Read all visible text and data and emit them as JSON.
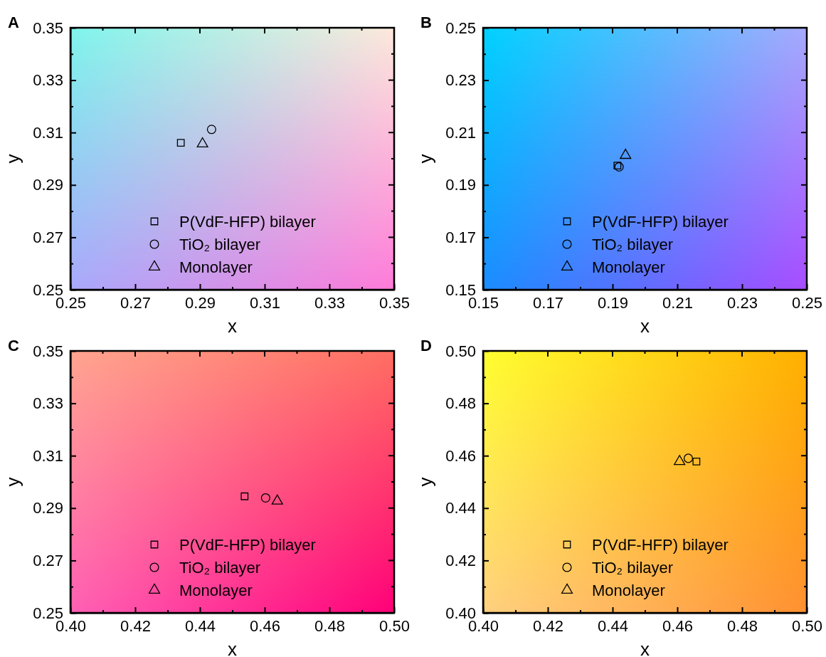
{
  "chart_data": [
    {
      "type": "scatter",
      "title": "A",
      "xlabel": "x",
      "ylabel": "y",
      "xlim": [
        0.25,
        0.35
      ],
      "ylim": [
        0.25,
        0.35
      ],
      "xticks": [
        0.25,
        {
          "value": 0.26,
          "label": null
        },
        0.27,
        {
          "value": 0.28,
          "label": null
        },
        0.29,
        {
          "value": 0.3,
          "label": null
        },
        0.31,
        {
          "value": 0.32,
          "label": null
        },
        0.33,
        {
          "value": 0.34,
          "label": null
        },
        0.35
      ],
      "yticks": [
        0.25,
        {
          "value": 0.26,
          "label": null
        },
        0.27,
        {
          "value": 0.28,
          "label": null
        },
        0.29,
        {
          "value": 0.3,
          "label": null
        },
        0.31,
        {
          "value": 0.32,
          "label": null
        },
        0.33,
        {
          "value": 0.34,
          "label": null
        },
        0.35
      ],
      "legend": "bottom",
      "grid": false,
      "series": [
        {
          "name": "P(VdF-HFP) bilayer",
          "marker": "square",
          "color": "#000000",
          "x": [
            0.2841
          ],
          "values": [
            0.3061
          ]
        },
        {
          "name": "TiO₂ bilayer",
          "marker": "circle",
          "color": "#000000",
          "x": [
            0.2936
          ],
          "values": [
            0.3112
          ]
        },
        {
          "name": "Monolayer",
          "marker": "triangle",
          "color": "#000000",
          "x": [
            0.2908
          ],
          "values": [
            0.3057
          ]
        }
      ]
    },
    {
      "type": "scatter",
      "title": "B",
      "xlabel": "x",
      "ylabel": "y",
      "xlim": [
        0.15,
        0.25
      ],
      "ylim": [
        0.15,
        0.25
      ],
      "xticks": [
        0.15,
        {
          "value": 0.16,
          "label": null
        },
        0.17,
        {
          "value": 0.18,
          "label": null
        },
        0.19,
        {
          "value": 0.2,
          "label": null
        },
        0.21,
        {
          "value": 0.22,
          "label": null
        },
        0.23,
        {
          "value": 0.24,
          "label": null
        },
        0.25
      ],
      "yticks": [
        0.15,
        {
          "value": 0.16,
          "label": null
        },
        0.17,
        {
          "value": 0.18,
          "label": null
        },
        0.19,
        {
          "value": 0.2,
          "label": null
        },
        0.21,
        {
          "value": 0.22,
          "label": null
        },
        0.23,
        {
          "value": 0.24,
          "label": null
        },
        0.25
      ],
      "legend": "bottom",
      "grid": false,
      "series": [
        {
          "name": "P(VdF-HFP) bilayer",
          "marker": "square",
          "color": "#000000",
          "x": [
            0.1915
          ],
          "values": [
            0.1974
          ]
        },
        {
          "name": "TiO₂ bilayer",
          "marker": "circle",
          "color": "#000000",
          "x": [
            0.192
          ],
          "values": [
            0.1969
          ]
        },
        {
          "name": "Monolayer",
          "marker": "triangle",
          "color": "#000000",
          "x": [
            0.194
          ],
          "values": [
            0.2013
          ]
        }
      ]
    },
    {
      "type": "scatter",
      "title": "C",
      "xlabel": "x",
      "ylabel": "y",
      "xlim": [
        0.4,
        0.5
      ],
      "ylim": [
        0.25,
        0.35
      ],
      "xticks": [
        {
          "value": 0.4,
          "label": "0.40"
        },
        {
          "value": 0.41,
          "label": null
        },
        0.42,
        {
          "value": 0.43,
          "label": null
        },
        0.44,
        {
          "value": 0.45,
          "label": null
        },
        0.46,
        {
          "value": 0.47,
          "label": null
        },
        0.48,
        {
          "value": 0.49,
          "label": null
        },
        {
          "value": 0.5,
          "label": "0.50"
        }
      ],
      "yticks": [
        0.25,
        {
          "value": 0.26,
          "label": null
        },
        0.27,
        {
          "value": 0.28,
          "label": null
        },
        0.29,
        {
          "value": 0.3,
          "label": null
        },
        0.31,
        {
          "value": 0.32,
          "label": null
        },
        0.33,
        {
          "value": 0.34,
          "label": null
        },
        0.35
      ],
      "legend": "bottom",
      "grid": false,
      "series": [
        {
          "name": "P(VdF-HFP) bilayer",
          "marker": "square",
          "color": "#000000",
          "x": [
            0.4538
          ],
          "values": [
            0.2945
          ]
        },
        {
          "name": "TiO₂ bilayer",
          "marker": "circle",
          "color": "#000000",
          "x": [
            0.4603
          ],
          "values": [
            0.2939
          ]
        },
        {
          "name": "Monolayer",
          "marker": "triangle",
          "color": "#000000",
          "x": [
            0.4639
          ],
          "values": [
            0.2927
          ]
        }
      ]
    },
    {
      "type": "scatter",
      "title": "D",
      "xlabel": "x",
      "ylabel": "y",
      "xlim": [
        0.4,
        0.5
      ],
      "ylim": [
        0.4,
        0.5
      ],
      "xticks": [
        {
          "value": 0.4,
          "label": "0.40"
        },
        {
          "value": 0.41,
          "label": null
        },
        0.42,
        {
          "value": 0.43,
          "label": null
        },
        0.44,
        {
          "value": 0.45,
          "label": null
        },
        0.46,
        {
          "value": 0.47,
          "label": null
        },
        0.48,
        {
          "value": 0.49,
          "label": null
        },
        {
          "value": 0.5,
          "label": "0.50"
        }
      ],
      "yticks": [
        {
          "value": 0.4,
          "label": "0.40"
        },
        {
          "value": 0.41,
          "label": null
        },
        0.42,
        {
          "value": 0.43,
          "label": null
        },
        0.44,
        {
          "value": 0.45,
          "label": null
        },
        0.46,
        {
          "value": 0.47,
          "label": null
        },
        0.48,
        {
          "value": 0.49,
          "label": null
        },
        {
          "value": 0.5,
          "label": "0.50"
        }
      ],
      "legend": "bottom",
      "grid": false,
      "series": [
        {
          "name": "P(VdF-HFP) bilayer",
          "marker": "square",
          "color": "#000000",
          "x": [
            0.4659
          ],
          "values": [
            0.4578
          ]
        },
        {
          "name": "TiO₂ bilayer",
          "marker": "circle",
          "color": "#000000",
          "x": [
            0.4634
          ],
          "values": [
            0.459
          ]
        },
        {
          "name": "Monolayer",
          "marker": "triangle",
          "color": "#000000",
          "x": [
            0.4607
          ],
          "values": [
            0.4578
          ]
        }
      ]
    }
  ]
}
